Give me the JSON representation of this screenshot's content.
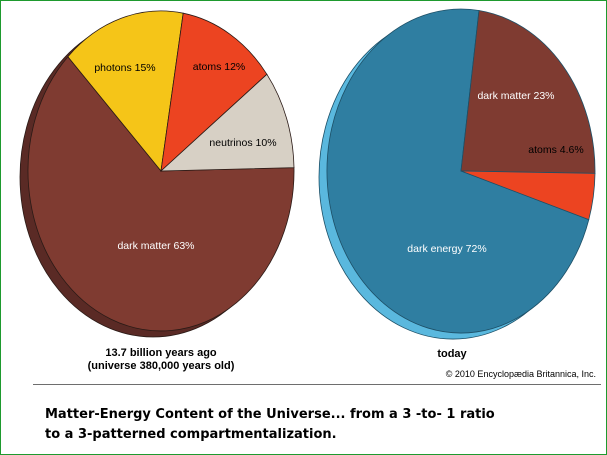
{
  "chart_data": [
    {
      "type": "pie",
      "title": "13.7 billion years ago",
      "subtitle": "(universe 380,000 years old)",
      "slices": [
        {
          "label": "dark matter 63%",
          "value": 63,
          "color": "#7f3b31"
        },
        {
          "label": "photons 15%",
          "value": 15,
          "color": "#f5c518"
        },
        {
          "label": "atoms 12%",
          "value": 12,
          "color": "#ec4421"
        },
        {
          "label": "neutrinos 10%",
          "value": 10,
          "color": "#d7d0c5"
        }
      ],
      "side_color": "#5a2a25"
    },
    {
      "type": "pie",
      "title": "today",
      "slices": [
        {
          "label": "dark energy 72%",
          "value": 72,
          "color": "#2f7ea1"
        },
        {
          "label": "dark matter 23%",
          "value": 23,
          "color": "#7f3b31"
        },
        {
          "label": "atoms 4.6%",
          "value": 4.6,
          "color": "#ec4421"
        }
      ],
      "side_color": "#5ab8de"
    }
  ],
  "copyright": "© 2010 Encyclopædia Britannica, Inc.",
  "bottom_caption": {
    "line1": "Matter-Energy Content of the Universe... from a 3 -to- 1 ratio",
    "line2": "to a 3-patterned compartmentalization."
  },
  "colors": {
    "frame_border": "#1e9a2e",
    "divider": "#6e6e6e"
  }
}
